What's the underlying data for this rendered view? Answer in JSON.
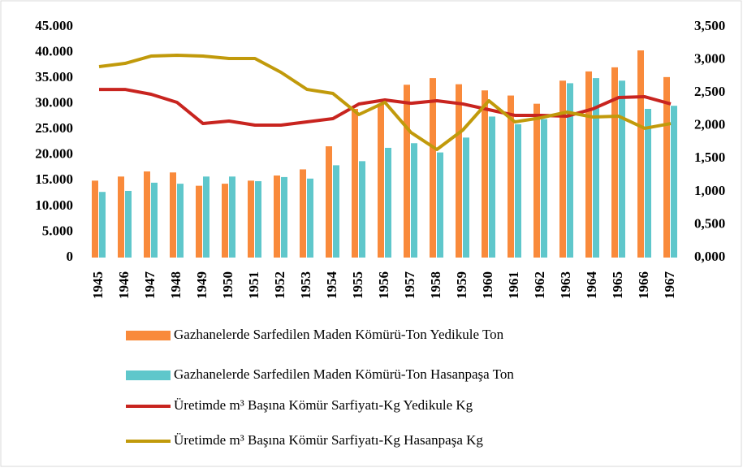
{
  "chart_data": {
    "type": "combo",
    "categories": [
      "1945",
      "1946",
      "1947",
      "1948",
      "1949",
      "1950",
      "1951",
      "1952",
      "1953",
      "1954",
      "1955",
      "1956",
      "1957",
      "1958",
      "1959",
      "1960",
      "1961",
      "1962",
      "1963",
      "1964",
      "1965",
      "1966",
      "1967"
    ],
    "series": [
      {
        "name": "Gazhanelerde Sarfedilen Maden Kömürü-Ton Yedikule Ton",
        "type": "bar",
        "axis": "y",
        "color": "#f98a3b",
        "values": [
          15000,
          15800,
          16800,
          16600,
          14000,
          14400,
          15000,
          16000,
          17200,
          21700,
          29000,
          30000,
          33700,
          35000,
          33800,
          32600,
          31600,
          30000,
          34500,
          36300,
          37100,
          40400,
          35200
        ]
      },
      {
        "name": "Gazhanelerde Sarfedilen Maden Kömürü-Ton Hasanpaşa Ton",
        "type": "bar",
        "axis": "y",
        "color": "#5fc7cb",
        "values": [
          12800,
          13000,
          14600,
          14400,
          15800,
          15800,
          14900,
          15700,
          15400,
          18000,
          18800,
          21400,
          22300,
          20500,
          23400,
          27500,
          26000,
          27000,
          34000,
          35000,
          34500,
          29000,
          29600
        ]
      },
      {
        "name": "Üretimde m³ Başına Kömür Sarfiyatı-Kg Yedikule Kg",
        "type": "line",
        "axis": "y2",
        "color": "#c8241f",
        "values": [
          2.55,
          2.55,
          2.477,
          2.354,
          2.033,
          2.07,
          2.009,
          2.009,
          2.058,
          2.107,
          2.329,
          2.391,
          2.34,
          2.378,
          2.33,
          2.243,
          2.157,
          2.157,
          2.144,
          2.255,
          2.428,
          2.44,
          2.33
        ]
      },
      {
        "name": "Üretimde m³ Başına Kömür Sarfiyatı-Kg Hasanpaşa Kg",
        "type": "line",
        "axis": "y2",
        "color": "#c19a0b",
        "values": [
          2.896,
          2.945,
          3.056,
          3.069,
          3.056,
          3.019,
          3.019,
          2.81,
          2.551,
          2.489,
          2.169,
          2.354,
          1.898,
          1.639,
          1.935,
          2.379,
          2.058,
          2.12,
          2.206,
          2.132,
          2.144,
          1.96,
          2.033
        ]
      }
    ],
    "ylim": [
      0,
      45000
    ],
    "yticks": [
      0,
      {
        "value": 5000,
        "label": "5.000"
      },
      {
        "value": 10000,
        "label": "10.000"
      },
      {
        "value": 15000,
        "label": "15.000"
      },
      {
        "value": 20000,
        "label": "20.000"
      },
      {
        "value": 25000,
        "label": "25.000"
      },
      {
        "value": 30000,
        "label": "30.000"
      },
      {
        "value": 35000,
        "label": "35.000"
      },
      {
        "value": 40000,
        "label": "40.000"
      },
      {
        "value": 45000,
        "label": "45.000"
      }
    ],
    "y2lim": [
      0,
      3.5
    ],
    "y2ticks": [
      {
        "value": 0,
        "label": "0,000"
      },
      {
        "value": 0.5,
        "label": "0,500"
      },
      {
        "value": 1,
        "label": "1,000"
      },
      {
        "value": 1.5,
        "label": "1,500"
      },
      {
        "value": 2,
        "label": "2,000"
      },
      {
        "value": 2.5,
        "label": "2,500"
      },
      {
        "value": 3,
        "label": "3,000"
      },
      {
        "value": 3.5,
        "label": "3,500"
      }
    ],
    "grid": false,
    "legend": "bottom"
  }
}
